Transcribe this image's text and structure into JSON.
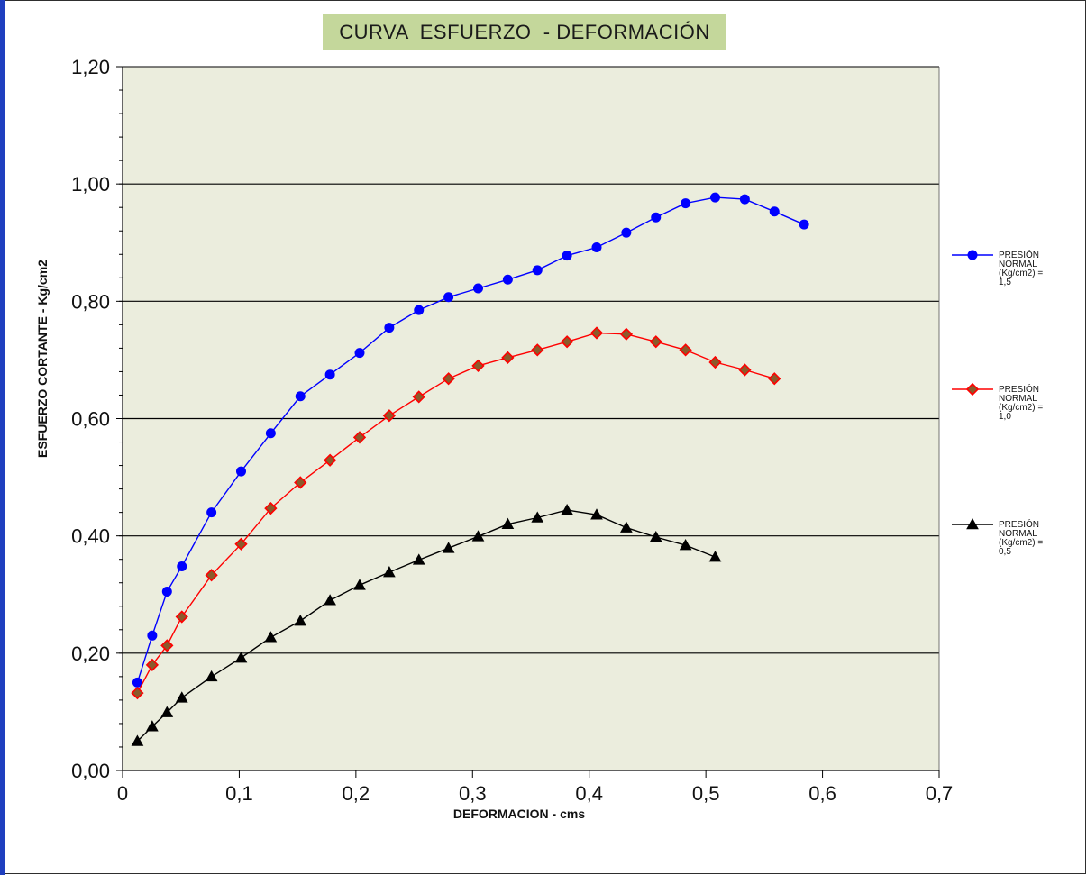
{
  "chart_data": {
    "type": "line",
    "title": "CURVA  ESFUERZO  - DEFORMACIÓN",
    "xlabel": "DEFORMACION  - cms",
    "ylabel": "ESFUERZO CORTANTE - Kg/cm2",
    "xlim": [
      0,
      0.7
    ],
    "ylim": [
      0,
      1.2
    ],
    "xticks": [
      "0",
      "0,1",
      "0,2",
      "0,3",
      "0,4",
      "0,5",
      "0,6",
      "0,7"
    ],
    "yticks": [
      "0,00",
      "0,20",
      "0,40",
      "0,60",
      "0,80",
      "1,00",
      "1,20"
    ],
    "grid": "horizontal major lines",
    "plot_background": "#ebeddd",
    "legend_position": "right",
    "series": [
      {
        "name": [
          "PRESIÓN",
          "NORMAL",
          "(Kg/cm2)  =",
          "1,5"
        ],
        "color": "#0000ff",
        "marker": "circle",
        "x": [
          0.0127,
          0.0254,
          0.0381,
          0.0508,
          0.0762,
          0.1016,
          0.127,
          0.1524,
          0.1778,
          0.2032,
          0.2286,
          0.254,
          0.2794,
          0.3048,
          0.3302,
          0.3556,
          0.381,
          0.4064,
          0.4318,
          0.4572,
          0.4826,
          0.508,
          0.5334,
          0.5588,
          0.5842
        ],
        "y": [
          0.15,
          0.23,
          0.305,
          0.348,
          0.44,
          0.51,
          0.575,
          0.638,
          0.675,
          0.712,
          0.755,
          0.785,
          0.807,
          0.822,
          0.837,
          0.853,
          0.878,
          0.892,
          0.917,
          0.943,
          0.967,
          0.977,
          0.974,
          0.953,
          0.931
        ]
      },
      {
        "name": [
          "PRESIÓN",
          "NORMAL",
          "(Kg/cm2)  =",
          "1,0"
        ],
        "color": "#ff0000",
        "marker": "diamond",
        "marker_fill": "#8b5a2b",
        "x": [
          0.0127,
          0.0254,
          0.0381,
          0.0508,
          0.0762,
          0.1016,
          0.127,
          0.1524,
          0.1778,
          0.2032,
          0.2286,
          0.254,
          0.2794,
          0.3048,
          0.3302,
          0.3556,
          0.381,
          0.4064,
          0.4318,
          0.4572,
          0.4826,
          0.508,
          0.5334,
          0.5588
        ],
        "y": [
          0.132,
          0.18,
          0.213,
          0.262,
          0.333,
          0.386,
          0.447,
          0.491,
          0.529,
          0.568,
          0.605,
          0.637,
          0.668,
          0.69,
          0.704,
          0.717,
          0.731,
          0.746,
          0.744,
          0.731,
          0.717,
          0.696,
          0.683,
          0.668
        ]
      },
      {
        "name": [
          "PRESIÓN",
          "NORMAL",
          "(Kg/cm2)  =",
          "0,5"
        ],
        "color": "#000000",
        "marker": "triangle",
        "x": [
          0.0127,
          0.0254,
          0.0381,
          0.0508,
          0.0762,
          0.1016,
          0.127,
          0.1524,
          0.1778,
          0.2032,
          0.2286,
          0.254,
          0.2794,
          0.3048,
          0.3302,
          0.3556,
          0.381,
          0.4064,
          0.4318,
          0.4572,
          0.4826,
          0.508
        ],
        "y": [
          0.05,
          0.075,
          0.099,
          0.124,
          0.16,
          0.192,
          0.227,
          0.255,
          0.29,
          0.316,
          0.338,
          0.359,
          0.379,
          0.399,
          0.42,
          0.431,
          0.444,
          0.436,
          0.414,
          0.398,
          0.384,
          0.364
        ]
      }
    ]
  }
}
